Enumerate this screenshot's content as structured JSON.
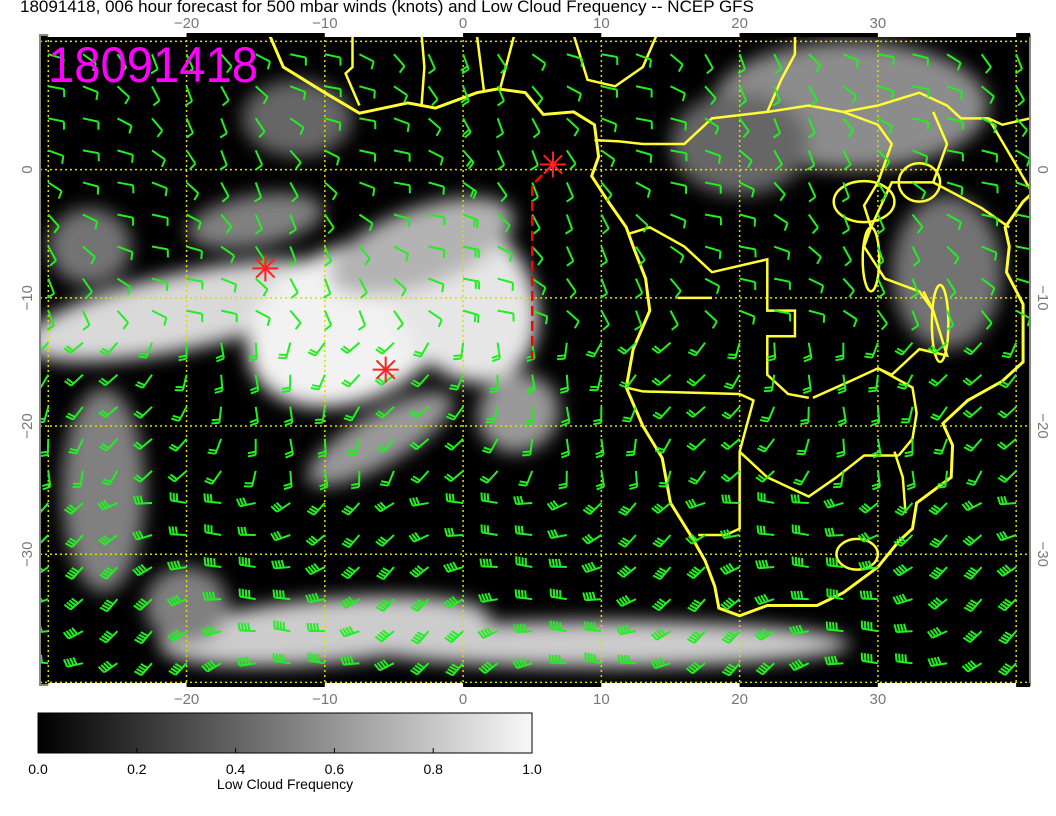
{
  "title": "18091418, 006 hour forecast for 500 mbar winds (knots) and Low Cloud Frequency -- NCEP GFS",
  "stamp": "18091418",
  "map": {
    "lon_range": [
      -30.6,
      41
    ],
    "lat_range": [
      -40.2,
      10.5
    ],
    "lon_ticks": [
      -20,
      -10,
      0,
      10,
      20,
      30
    ],
    "lat_ticks": [
      0,
      -10,
      -20,
      -30
    ],
    "gridlines": "dotted yellow every 10 degrees",
    "background_field": "Low Cloud Frequency (grayscale)",
    "overlay": "500 mbar wind barbs (knots)",
    "coastline_color": "#ffff33",
    "barb_color": "#22ee22",
    "stamp_color": "#ff00ff",
    "markers": [
      {
        "type": "red-asterisk",
        "lon": 6.5,
        "lat": 0.4
      },
      {
        "type": "red-asterisk",
        "lon": -14.3,
        "lat": -7.7
      },
      {
        "type": "red-asterisk",
        "lon": -5.6,
        "lat": -15.6
      }
    ],
    "track": {
      "color": "#ff0000",
      "style": "dashed",
      "points": [
        [
          6.5,
          0.4
        ],
        [
          5,
          -1.2
        ],
        [
          5,
          -14.8
        ]
      ]
    }
  },
  "colorbar": {
    "label": "Low Cloud Frequency",
    "ticks": [
      "0.0",
      "0.2",
      "0.4",
      "0.6",
      "0.8",
      "1.0"
    ],
    "range": [
      0,
      1
    ],
    "colormap": "black-to-white"
  }
}
